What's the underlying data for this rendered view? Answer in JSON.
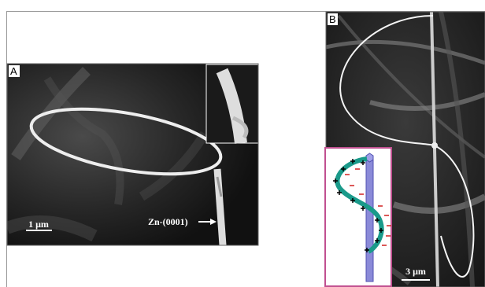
{
  "panel_a": {
    "label": "A",
    "scale_bar": "1 μm",
    "annotation": "Zn-(0001)"
  },
  "panel_b": {
    "label": "B",
    "scale_bar": "3 μm"
  }
}
